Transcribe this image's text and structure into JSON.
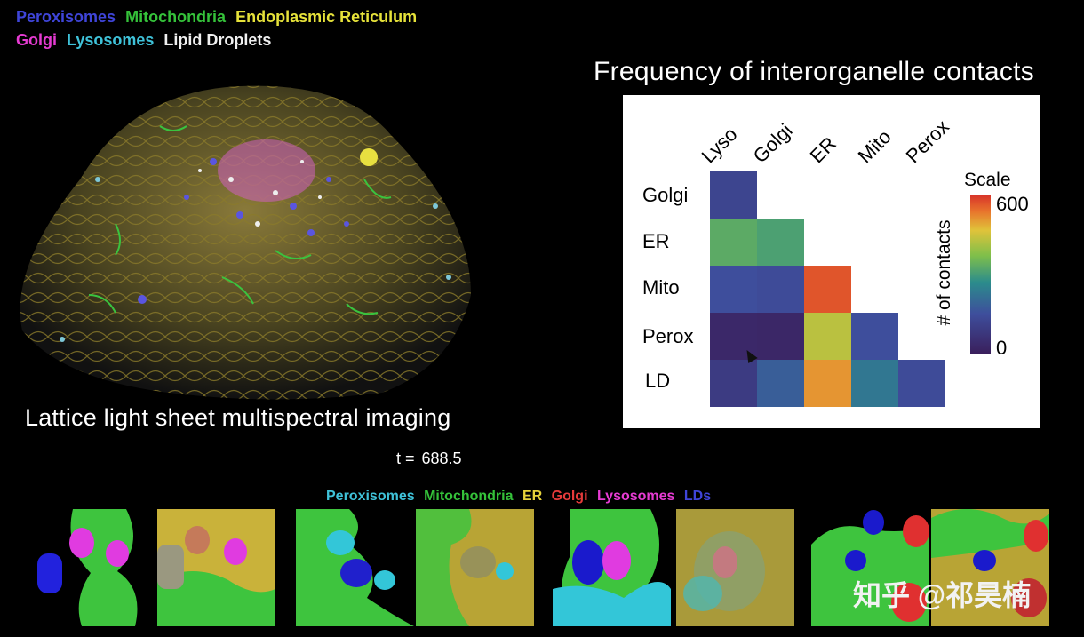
{
  "top_legend": {
    "line1": [
      {
        "label": "Peroxisomes",
        "color": "#3f45d9"
      },
      {
        "label": "Mitochondria",
        "color": "#35c23a"
      },
      {
        "label": "Endoplasmic Reticulum",
        "color": "#e6e23a"
      }
    ],
    "line2": [
      {
        "label": "Golgi",
        "color": "#e63bd2"
      },
      {
        "label": "Lysosomes",
        "color": "#3fc2d9"
      },
      {
        "label": "Lipid Droplets",
        "color": "#f0f0f0"
      }
    ]
  },
  "caption": "Lattice light sheet multispectral imaging",
  "timestamp": {
    "label": "t =",
    "value": "688.5"
  },
  "heatmap": {
    "title": "Frequency of interorganelle contacts",
    "columns": [
      "Lyso",
      "Golgi",
      "ER",
      "Mito",
      "Perox"
    ],
    "rows": [
      "Golgi",
      "ER",
      "Mito",
      "Perox",
      "LD"
    ],
    "scale_title": "Scale",
    "scale_max": "600",
    "scale_min": "0",
    "scale_axis_label": "# of contacts"
  },
  "chart_data": {
    "type": "heatmap",
    "title": "Frequency of interorganelle contacts",
    "x": [
      "Lyso",
      "Golgi",
      "ER",
      "Mito",
      "Perox"
    ],
    "y": [
      "Golgi",
      "ER",
      "Mito",
      "Perox",
      "LD"
    ],
    "values": [
      [
        120,
        null,
        null,
        null,
        null
      ],
      [
        330,
        310,
        null,
        null,
        null
      ],
      [
        150,
        140,
        570,
        null,
        null
      ],
      [
        30,
        25,
        430,
        150,
        null
      ],
      [
        90,
        180,
        510,
        230,
        140
      ]
    ],
    "range": [
      0,
      600
    ],
    "colorbar_label": "# of contacts"
  },
  "bottom_legend": [
    {
      "label": "Peroxisomes",
      "color": "#3fc2d9"
    },
    {
      "label": "Mitochondria",
      "color": "#35c23a"
    },
    {
      "label": "ER",
      "color": "#e6d23a"
    },
    {
      "label": "Golgi",
      "color": "#e63b3b"
    },
    {
      "label": "Lysosomes",
      "color": "#e63bd2"
    },
    {
      "label": "LDs",
      "color": "#3f45d9"
    }
  ],
  "watermark": "知乎 @祁昊楠"
}
